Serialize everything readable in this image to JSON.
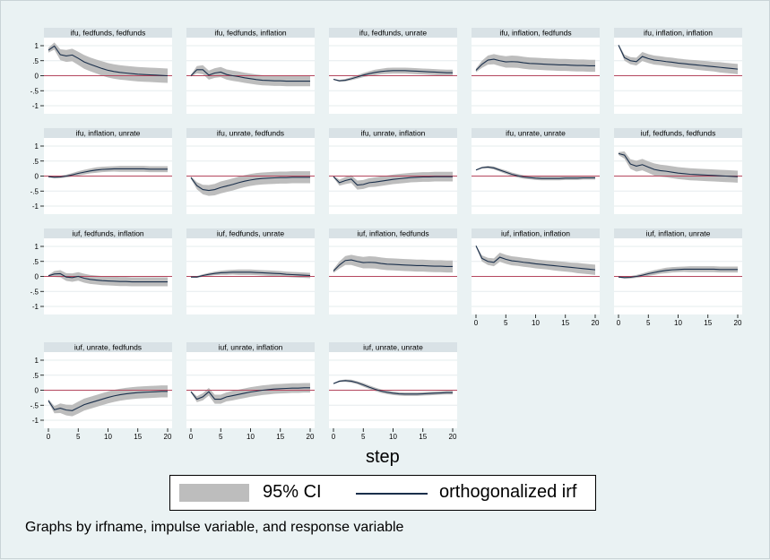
{
  "chart_data": {
    "type": "line",
    "xlabel": "step",
    "note": "Graphs by irfname, impulse variable, and response variable",
    "legend": [
      "95% CI",
      "orthogonalized irf"
    ],
    "xlim": [
      0,
      20
    ],
    "ylim": [
      -1,
      1
    ],
    "xticks": [
      "0",
      "5",
      "10",
      "15",
      "20"
    ],
    "yticks": [
      "1",
      ".5",
      "0",
      "-.5",
      "-1"
    ],
    "colors": {
      "band": "#bdbdbd",
      "line": "#1a2f4b",
      "zero": "#b5485f",
      "panel_header": "#d9e2e6",
      "panel_bg": "#ffffff",
      "background": "#eaf2f3"
    },
    "panels": [
      {
        "title": "ifu, fedfunds, fedfunds",
        "irf": [
          0.85,
          0.99,
          0.7,
          0.66,
          0.69,
          0.58,
          0.46,
          0.38,
          0.31,
          0.24,
          0.18,
          0.14,
          0.11,
          0.09,
          0.07,
          0.05,
          0.04,
          0.03,
          0.02,
          0.01,
          0.0
        ],
        "hw": [
          0.08,
          0.12,
          0.18,
          0.2,
          0.21,
          0.22,
          0.23,
          0.23,
          0.23,
          0.24,
          0.24,
          0.24,
          0.24,
          0.24,
          0.24,
          0.24,
          0.24,
          0.24,
          0.24,
          0.24,
          0.24
        ]
      },
      {
        "title": "ifu, fedfunds, inflation",
        "irf": [
          0.0,
          0.2,
          0.2,
          0.02,
          0.09,
          0.12,
          0.04,
          0.0,
          -0.03,
          -0.07,
          -0.1,
          -0.13,
          -0.15,
          -0.16,
          -0.17,
          -0.17,
          -0.18,
          -0.18,
          -0.18,
          -0.18,
          -0.18
        ],
        "hw": [
          0.03,
          0.12,
          0.15,
          0.15,
          0.16,
          0.17,
          0.17,
          0.17,
          0.17,
          0.17,
          0.17,
          0.17,
          0.17,
          0.17,
          0.17,
          0.17,
          0.17,
          0.17,
          0.17,
          0.17,
          0.17
        ]
      },
      {
        "title": "ifu, fedfunds, unrate",
        "irf": [
          -0.12,
          -0.17,
          -0.15,
          -0.1,
          -0.04,
          0.02,
          0.07,
          0.11,
          0.14,
          0.16,
          0.17,
          0.17,
          0.17,
          0.16,
          0.15,
          0.14,
          0.13,
          0.12,
          0.11,
          0.1,
          0.1
        ],
        "hw": [
          0.02,
          0.03,
          0.04,
          0.05,
          0.06,
          0.07,
          0.08,
          0.09,
          0.09,
          0.1,
          0.1,
          0.1,
          0.1,
          0.1,
          0.1,
          0.1,
          0.1,
          0.1,
          0.1,
          0.1,
          0.1
        ]
      },
      {
        "title": "ifu, inflation, fedfunds",
        "irf": [
          0.18,
          0.38,
          0.52,
          0.55,
          0.5,
          0.46,
          0.47,
          0.46,
          0.43,
          0.41,
          0.4,
          0.39,
          0.38,
          0.37,
          0.36,
          0.36,
          0.35,
          0.34,
          0.34,
          0.33,
          0.33
        ],
        "hw": [
          0.06,
          0.12,
          0.15,
          0.17,
          0.18,
          0.19,
          0.2,
          0.2,
          0.2,
          0.2,
          0.2,
          0.2,
          0.2,
          0.2,
          0.2,
          0.2,
          0.2,
          0.2,
          0.2,
          0.2,
          0.2
        ]
      },
      {
        "title": "ifu, inflation, inflation",
        "irf": [
          1.02,
          0.6,
          0.5,
          0.47,
          0.64,
          0.57,
          0.52,
          0.5,
          0.47,
          0.45,
          0.42,
          0.4,
          0.38,
          0.36,
          0.34,
          0.32,
          0.3,
          0.28,
          0.26,
          0.24,
          0.22
        ],
        "hw": [
          0.03,
          0.1,
          0.12,
          0.13,
          0.15,
          0.15,
          0.15,
          0.15,
          0.15,
          0.15,
          0.15,
          0.15,
          0.15,
          0.16,
          0.16,
          0.16,
          0.16,
          0.17,
          0.17,
          0.17,
          0.17
        ]
      },
      {
        "title": "ifu, inflation, unrate",
        "irf": [
          -0.02,
          -0.04,
          -0.03,
          0.0,
          0.04,
          0.09,
          0.13,
          0.17,
          0.2,
          0.22,
          0.23,
          0.24,
          0.24,
          0.24,
          0.24,
          0.24,
          0.24,
          0.23,
          0.23,
          0.23,
          0.23
        ],
        "hw": [
          0.02,
          0.03,
          0.04,
          0.05,
          0.06,
          0.07,
          0.08,
          0.08,
          0.09,
          0.09,
          0.09,
          0.09,
          0.1,
          0.1,
          0.1,
          0.1,
          0.1,
          0.1,
          0.1,
          0.1,
          0.1
        ]
      },
      {
        "title": "ifu, unrate, fedfunds",
        "irf": [
          -0.05,
          -0.32,
          -0.45,
          -0.48,
          -0.45,
          -0.38,
          -0.33,
          -0.28,
          -0.22,
          -0.17,
          -0.13,
          -0.1,
          -0.08,
          -0.07,
          -0.06,
          -0.05,
          -0.05,
          -0.04,
          -0.04,
          -0.04,
          -0.04
        ],
        "hw": [
          0.04,
          0.12,
          0.16,
          0.18,
          0.19,
          0.2,
          0.2,
          0.2,
          0.2,
          0.2,
          0.2,
          0.2,
          0.2,
          0.2,
          0.2,
          0.2,
          0.2,
          0.2,
          0.2,
          0.2,
          0.2
        ]
      },
      {
        "title": "ifu, unrate, inflation",
        "irf": [
          -0.02,
          -0.22,
          -0.15,
          -0.1,
          -0.3,
          -0.28,
          -0.22,
          -0.2,
          -0.17,
          -0.14,
          -0.11,
          -0.09,
          -0.07,
          -0.05,
          -0.04,
          -0.03,
          -0.03,
          -0.02,
          -0.02,
          -0.02,
          -0.02
        ],
        "hw": [
          0.03,
          0.1,
          0.12,
          0.13,
          0.15,
          0.15,
          0.15,
          0.16,
          0.16,
          0.16,
          0.16,
          0.16,
          0.16,
          0.16,
          0.16,
          0.16,
          0.16,
          0.16,
          0.16,
          0.16,
          0.16
        ]
      },
      {
        "title": "ifu, unrate, unrate",
        "irf": [
          0.2,
          0.28,
          0.3,
          0.27,
          0.2,
          0.13,
          0.06,
          0.01,
          -0.03,
          -0.05,
          -0.07,
          -0.08,
          -0.08,
          -0.08,
          -0.08,
          -0.07,
          -0.07,
          -0.07,
          -0.06,
          -0.06,
          -0.06
        ],
        "hw": [
          0.02,
          0.03,
          0.04,
          0.05,
          0.05,
          0.06,
          0.06,
          0.06,
          0.06,
          0.06,
          0.06,
          0.06,
          0.06,
          0.06,
          0.06,
          0.06,
          0.06,
          0.06,
          0.06,
          0.06,
          0.06
        ]
      },
      {
        "title": "iuf, fedfunds, fedfunds",
        "irf": [
          0.75,
          0.7,
          0.4,
          0.33,
          0.38,
          0.3,
          0.22,
          0.18,
          0.16,
          0.13,
          0.1,
          0.08,
          0.06,
          0.05,
          0.04,
          0.03,
          0.02,
          0.01,
          0.0,
          -0.01,
          -0.02
        ],
        "hw": [
          0.05,
          0.12,
          0.16,
          0.18,
          0.19,
          0.19,
          0.2,
          0.2,
          0.2,
          0.2,
          0.2,
          0.2,
          0.2,
          0.2,
          0.2,
          0.2,
          0.2,
          0.2,
          0.2,
          0.2,
          0.2
        ]
      },
      {
        "title": "iuf, fedfunds, inflation",
        "irf": [
          0.02,
          0.08,
          0.09,
          -0.02,
          -0.04,
          0.0,
          -0.06,
          -0.1,
          -0.12,
          -0.14,
          -0.15,
          -0.16,
          -0.17,
          -0.17,
          -0.18,
          -0.18,
          -0.18,
          -0.18,
          -0.18,
          -0.18,
          -0.18
        ],
        "hw": [
          0.03,
          0.1,
          0.12,
          0.13,
          0.14,
          0.14,
          0.15,
          0.15,
          0.15,
          0.15,
          0.15,
          0.15,
          0.15,
          0.15,
          0.15,
          0.15,
          0.15,
          0.15,
          0.15,
          0.15,
          0.15
        ]
      },
      {
        "title": "iuf, fedfunds, unrate",
        "irf": [
          -0.02,
          -0.02,
          0.03,
          0.07,
          0.1,
          0.12,
          0.13,
          0.14,
          0.14,
          0.14,
          0.14,
          0.13,
          0.12,
          0.11,
          0.1,
          0.09,
          0.07,
          0.06,
          0.05,
          0.04,
          0.03
        ],
        "hw": [
          0.02,
          0.03,
          0.04,
          0.05,
          0.06,
          0.07,
          0.08,
          0.08,
          0.09,
          0.09,
          0.09,
          0.09,
          0.09,
          0.09,
          0.09,
          0.09,
          0.09,
          0.09,
          0.09,
          0.09,
          0.09
        ]
      },
      {
        "title": "iuf, inflation, fedfunds",
        "irf": [
          0.18,
          0.38,
          0.53,
          0.55,
          0.5,
          0.46,
          0.47,
          0.46,
          0.43,
          0.41,
          0.4,
          0.39,
          0.38,
          0.37,
          0.36,
          0.36,
          0.35,
          0.34,
          0.34,
          0.33,
          0.33
        ],
        "hw": [
          0.06,
          0.12,
          0.15,
          0.17,
          0.18,
          0.19,
          0.2,
          0.2,
          0.2,
          0.2,
          0.2,
          0.2,
          0.2,
          0.2,
          0.2,
          0.2,
          0.2,
          0.2,
          0.2,
          0.2,
          0.2
        ]
      },
      {
        "title": "iuf, inflation, inflation",
        "irf": [
          1.02,
          0.6,
          0.5,
          0.47,
          0.64,
          0.57,
          0.52,
          0.5,
          0.47,
          0.45,
          0.42,
          0.4,
          0.38,
          0.36,
          0.34,
          0.32,
          0.3,
          0.28,
          0.26,
          0.24,
          0.22
        ],
        "hw": [
          0.03,
          0.1,
          0.12,
          0.13,
          0.15,
          0.15,
          0.15,
          0.15,
          0.15,
          0.15,
          0.15,
          0.15,
          0.15,
          0.16,
          0.16,
          0.16,
          0.16,
          0.17,
          0.17,
          0.17,
          0.17
        ]
      },
      {
        "title": "iuf, inflation, unrate",
        "irf": [
          -0.02,
          -0.04,
          -0.03,
          0.0,
          0.04,
          0.09,
          0.13,
          0.17,
          0.2,
          0.22,
          0.23,
          0.24,
          0.24,
          0.24,
          0.24,
          0.24,
          0.24,
          0.23,
          0.23,
          0.23,
          0.23
        ],
        "hw": [
          0.02,
          0.03,
          0.04,
          0.05,
          0.06,
          0.07,
          0.08,
          0.08,
          0.09,
          0.09,
          0.09,
          0.09,
          0.1,
          0.1,
          0.1,
          0.1,
          0.1,
          0.1,
          0.1,
          0.1,
          0.1
        ]
      },
      {
        "title": "iuf, unrate, fedfunds",
        "irf": [
          -0.35,
          -0.65,
          -0.6,
          -0.66,
          -0.68,
          -0.58,
          -0.48,
          -0.42,
          -0.36,
          -0.3,
          -0.24,
          -0.19,
          -0.15,
          -0.12,
          -0.1,
          -0.08,
          -0.07,
          -0.06,
          -0.05,
          -0.04,
          -0.04
        ],
        "hw": [
          0.05,
          0.12,
          0.16,
          0.18,
          0.19,
          0.2,
          0.2,
          0.2,
          0.2,
          0.2,
          0.2,
          0.2,
          0.2,
          0.2,
          0.2,
          0.2,
          0.2,
          0.2,
          0.2,
          0.2,
          0.2
        ]
      },
      {
        "title": "iuf, unrate, inflation",
        "irf": [
          -0.05,
          -0.3,
          -0.22,
          -0.05,
          -0.3,
          -0.3,
          -0.22,
          -0.18,
          -0.14,
          -0.1,
          -0.06,
          -0.03,
          0.0,
          0.02,
          0.04,
          0.05,
          0.06,
          0.07,
          0.07,
          0.08,
          0.08
        ],
        "hw": [
          0.03,
          0.1,
          0.12,
          0.13,
          0.15,
          0.15,
          0.15,
          0.16,
          0.16,
          0.16,
          0.16,
          0.16,
          0.16,
          0.16,
          0.16,
          0.16,
          0.16,
          0.16,
          0.16,
          0.16,
          0.16
        ]
      },
      {
        "title": "iuf, unrate, unrate",
        "irf": [
          0.22,
          0.3,
          0.32,
          0.3,
          0.25,
          0.18,
          0.1,
          0.03,
          -0.03,
          -0.07,
          -0.1,
          -0.12,
          -0.13,
          -0.13,
          -0.13,
          -0.12,
          -0.11,
          -0.1,
          -0.09,
          -0.08,
          -0.08
        ],
        "hw": [
          0.02,
          0.03,
          0.04,
          0.05,
          0.05,
          0.06,
          0.06,
          0.06,
          0.06,
          0.06,
          0.06,
          0.06,
          0.06,
          0.06,
          0.06,
          0.06,
          0.06,
          0.06,
          0.06,
          0.06,
          0.06
        ]
      }
    ]
  }
}
